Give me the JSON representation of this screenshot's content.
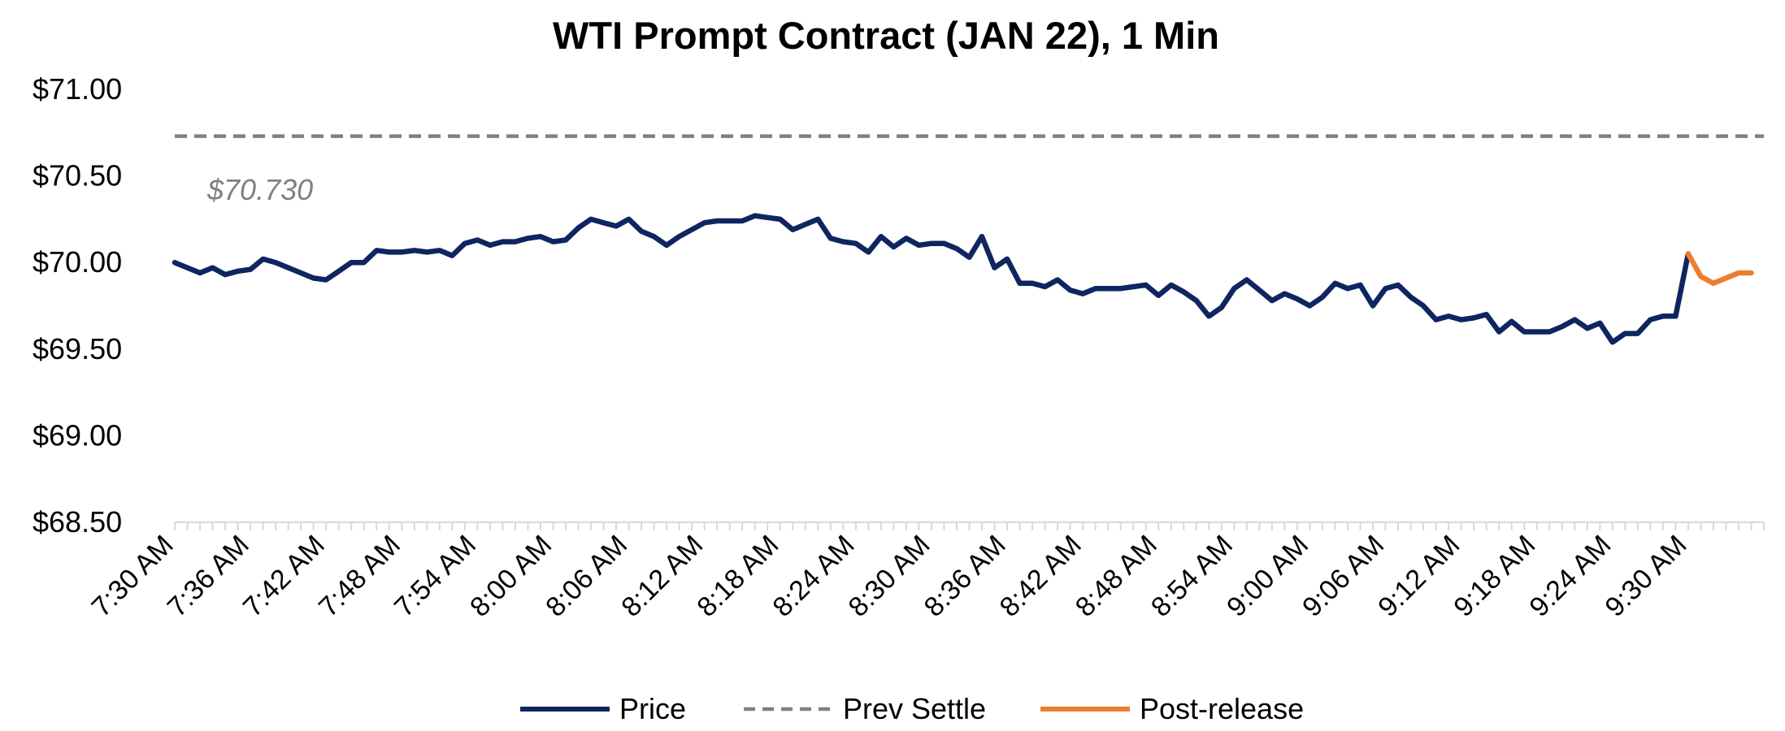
{
  "chart_data": {
    "type": "line",
    "title": "WTI Prompt Contract (JAN 22), 1 Min",
    "xlabel": "",
    "ylabel": "",
    "ylim": [
      68.5,
      71.0
    ],
    "y_ticks": [
      "$68.50",
      "$69.00",
      "$69.50",
      "$70.00",
      "$70.50",
      "$71.00"
    ],
    "y_tick_values": [
      68.5,
      69.0,
      69.5,
      70.0,
      70.5,
      71.0
    ],
    "x_ticks": [
      "7:30 AM",
      "7:36 AM",
      "7:42 AM",
      "7:48 AM",
      "7:54 AM",
      "8:00 AM",
      "8:06 AM",
      "8:12 AM",
      "8:18 AM",
      "8:24 AM",
      "8:30 AM",
      "8:36 AM",
      "8:42 AM",
      "8:48 AM",
      "8:54 AM",
      "9:00 AM",
      "9:06 AM",
      "9:12 AM",
      "9:18 AM",
      "9:24 AM",
      "9:30 AM"
    ],
    "x_range_minutes": [
      0,
      126
    ],
    "prev_settle": 70.73,
    "prev_settle_label": "$70.730",
    "series": [
      {
        "name": "Price",
        "color": "#0f2561",
        "start_minute": 0,
        "values": [
          70.0,
          69.97,
          69.94,
          69.97,
          69.93,
          69.95,
          69.96,
          70.02,
          70.0,
          69.97,
          69.94,
          69.91,
          69.9,
          69.95,
          70.0,
          70.0,
          70.07,
          70.06,
          70.06,
          70.07,
          70.06,
          70.07,
          70.04,
          70.11,
          70.13,
          70.1,
          70.12,
          70.12,
          70.14,
          70.15,
          70.12,
          70.13,
          70.2,
          70.25,
          70.23,
          70.21,
          70.25,
          70.18,
          70.15,
          70.1,
          70.15,
          70.19,
          70.23,
          70.24,
          70.24,
          70.24,
          70.27,
          70.26,
          70.25,
          70.19,
          70.22,
          70.25,
          70.14,
          70.12,
          70.11,
          70.06,
          70.15,
          70.09,
          70.14,
          70.1,
          70.11,
          70.11,
          70.08,
          70.03,
          70.15,
          69.97,
          70.02,
          69.88,
          69.88,
          69.86,
          69.9,
          69.84,
          69.82,
          69.85,
          69.85,
          69.85,
          69.86,
          69.87,
          69.81,
          69.87,
          69.83,
          69.78,
          69.69,
          69.74,
          69.85,
          69.9,
          69.84,
          69.78,
          69.82,
          69.79,
          69.75,
          69.8,
          69.88,
          69.85,
          69.87,
          69.75,
          69.85,
          69.87,
          69.8,
          69.75,
          69.67,
          69.69,
          69.67,
          69.68,
          69.7,
          69.6,
          69.66,
          69.6,
          69.6,
          69.6,
          69.63,
          69.67,
          69.62,
          69.65,
          69.54,
          69.59,
          69.59,
          69.67,
          69.69,
          69.69,
          70.05
        ]
      },
      {
        "name": "Post-release",
        "color": "#ed7d31",
        "start_minute": 120,
        "values": [
          70.05,
          69.92,
          69.88,
          69.91,
          69.94,
          69.94
        ]
      }
    ],
    "legend": [
      {
        "label": "Price",
        "style": "solid",
        "color": "#0f2561"
      },
      {
        "label": "Prev Settle",
        "style": "dashed",
        "color": "#808080"
      },
      {
        "label": "Post-release",
        "style": "solid",
        "color": "#ed7d31"
      }
    ],
    "legend_position": "bottom",
    "grid": false
  }
}
